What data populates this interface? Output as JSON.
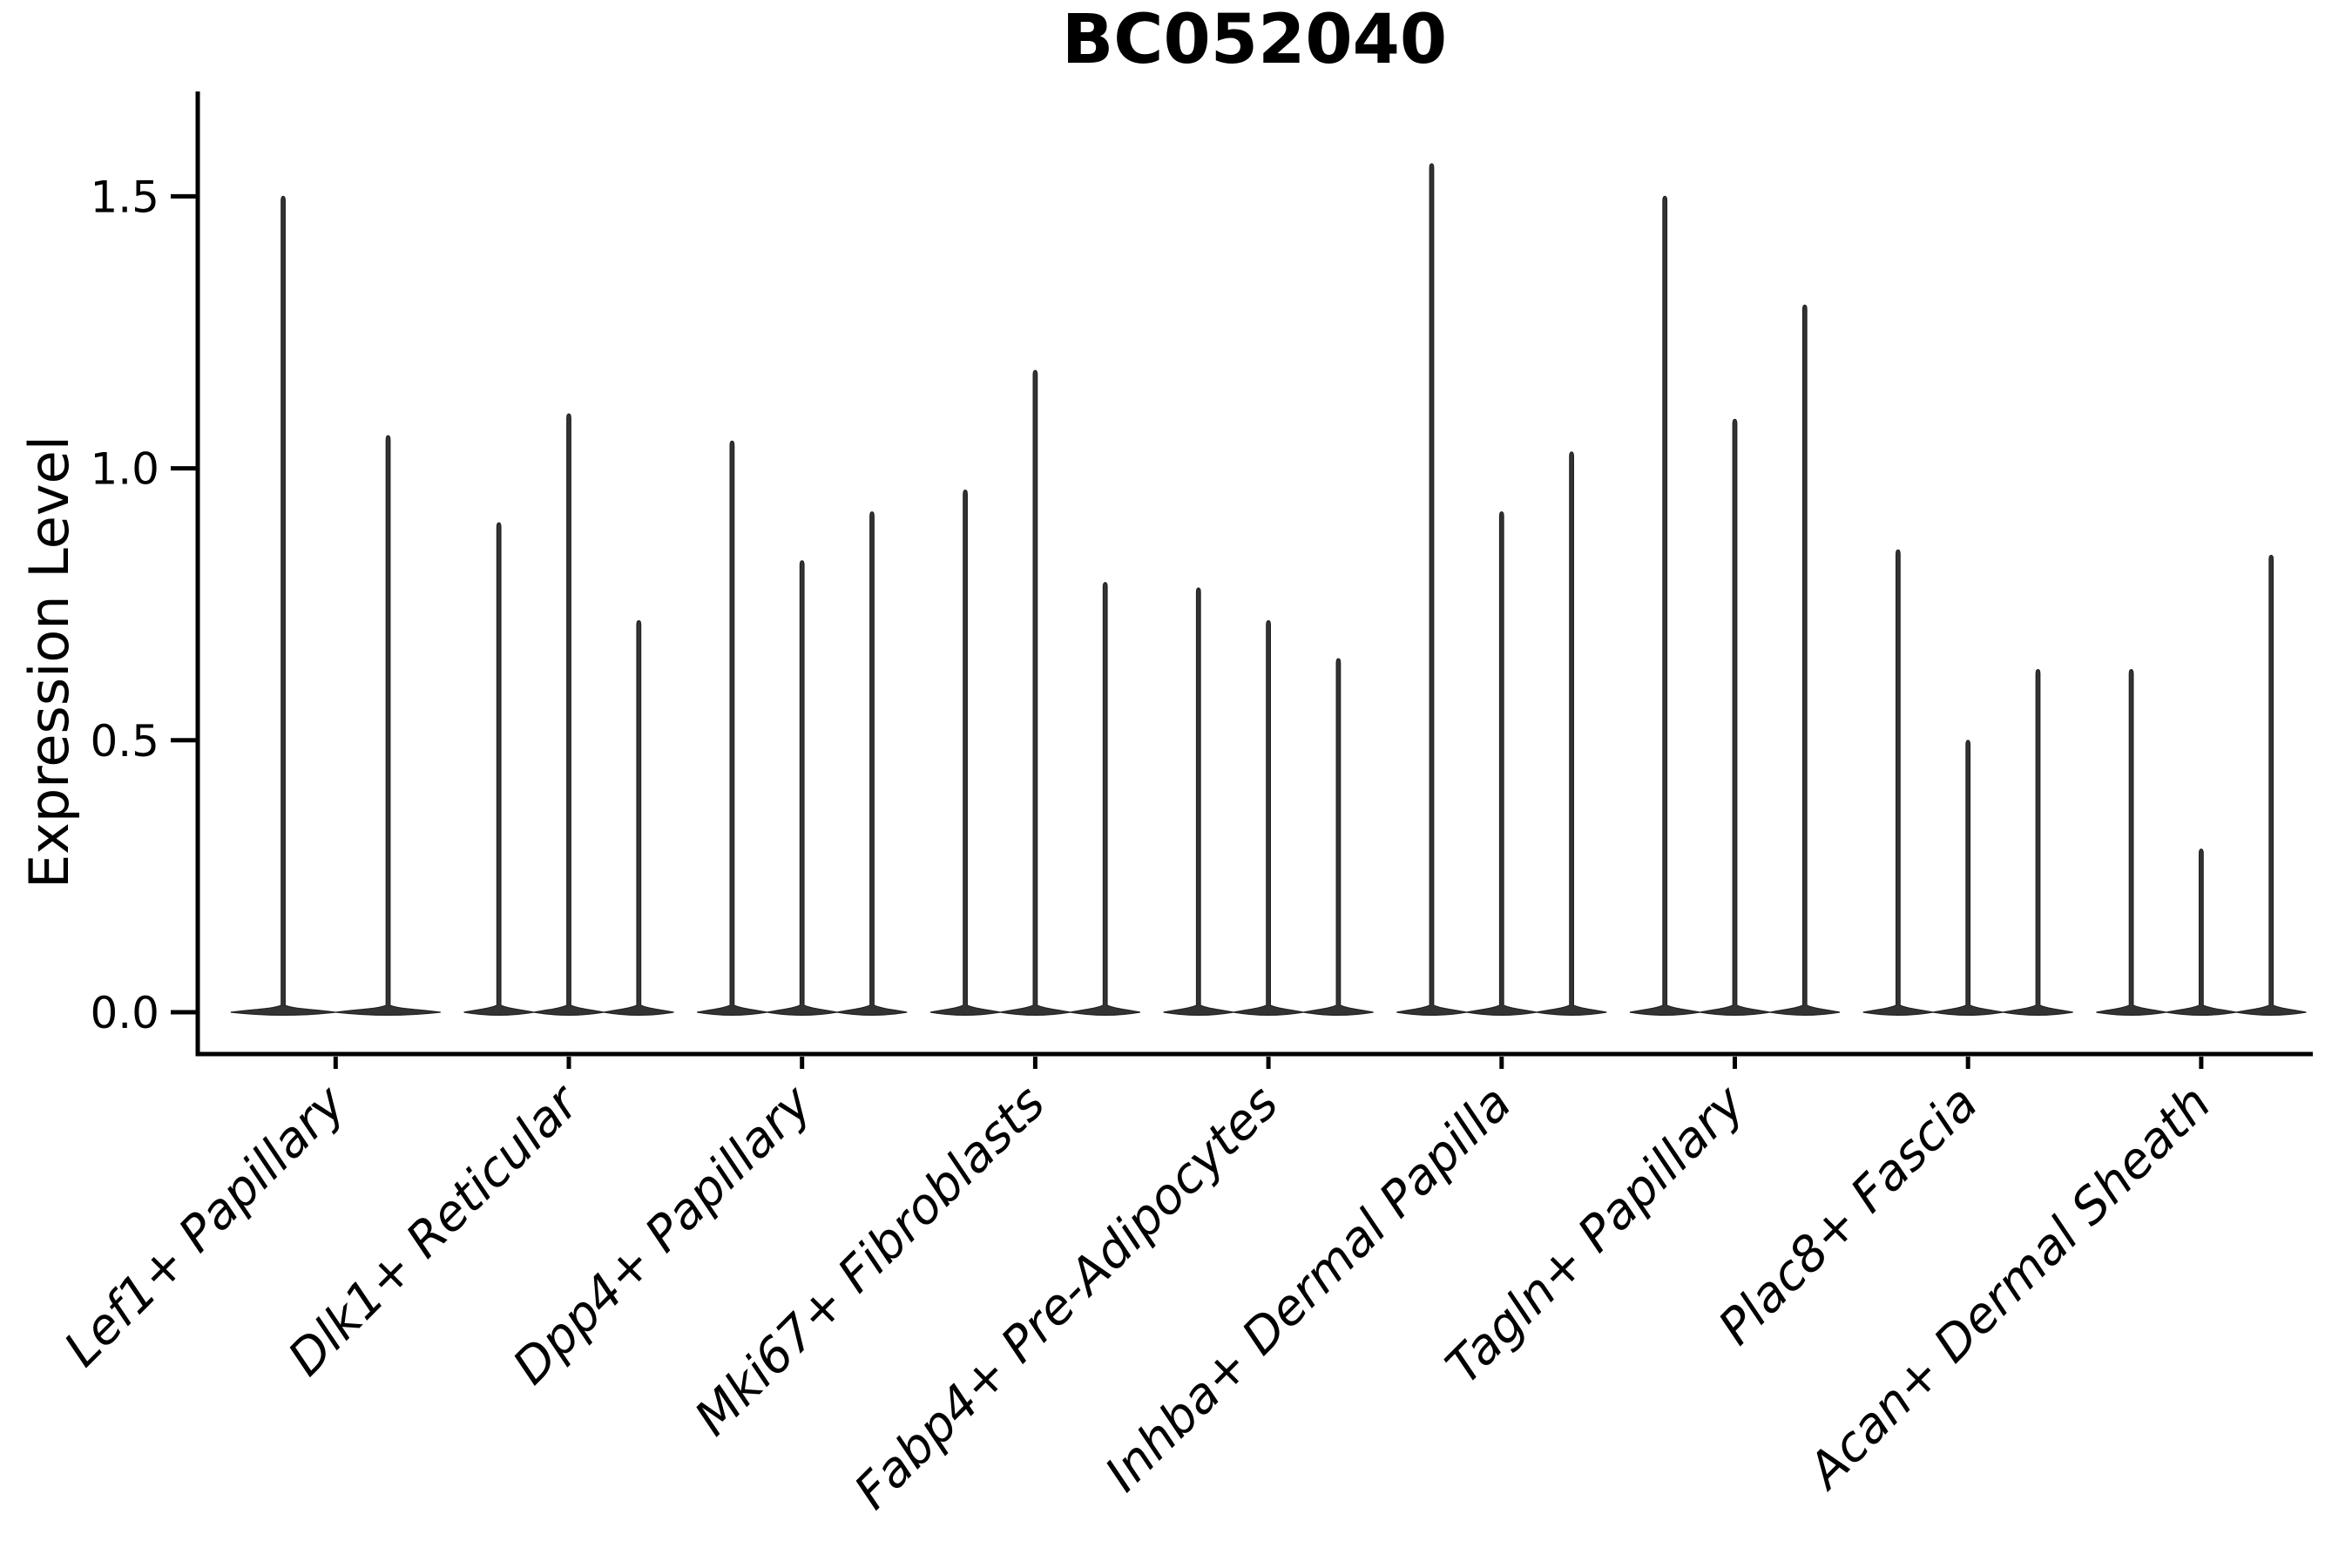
{
  "figure": {
    "background_color": "#ffffff",
    "title": "BC052040",
    "ylabel": "Expression Level",
    "xlabel": ""
  },
  "chart_data": {
    "type": "violin",
    "title": "BC052040",
    "ylabel": "Expression Level",
    "xlabel": "",
    "grid": false,
    "legend": "none",
    "ylim": [
      -0.08,
      1.69
    ],
    "ytick_labels": [
      "0.0",
      "0.5",
      "1.0",
      "1.5"
    ],
    "ytick_values": [
      0.0,
      0.5,
      1.0,
      1.5
    ],
    "x_tick_rotation_deg": 45,
    "x_tick_font_style": "italic",
    "categories": [
      "Lef1+ Papillary",
      "Dlk1+ Reticular",
      "Dpp4+ Papillary",
      "Mki67+ Fibroblasts",
      "Fabp4+ Pre-Adipocytes",
      "Inhba+ Dermal Papilla",
      "Tagln+ Papillary",
      "Plac8+ Fascia",
      "Acan+ Dermal Sheath"
    ],
    "description": "Needle-shaped violins: bulk of expression density is a flat lens at 0 with a thin spike rising to the maximum expression value; 2-3 violins (sub-populations) per category.",
    "groups": [
      {
        "label": "Lef1+ Papillary",
        "violin_maxima": [
          1.5,
          1.06
        ]
      },
      {
        "label": "Dlk1+ Reticular",
        "violin_maxima": [
          0.9,
          1.1,
          0.72
        ]
      },
      {
        "label": "Dpp4+ Papillary",
        "violin_maxima": [
          1.05,
          0.83,
          0.92
        ]
      },
      {
        "label": "Mki67+ Fibroblasts",
        "violin_maxima": [
          0.96,
          1.18,
          0.79
        ]
      },
      {
        "label": "Fabp4+ Pre-Adipocytes",
        "violin_maxima": [
          0.78,
          0.72,
          0.65
        ]
      },
      {
        "label": "Inhba+ Dermal Papilla",
        "violin_maxima": [
          1.56,
          0.92,
          1.03
        ]
      },
      {
        "label": "Tagln+ Papillary",
        "violin_maxima": [
          1.5,
          1.09,
          1.3
        ]
      },
      {
        "label": "Plac8+ Fascia",
        "violin_maxima": [
          0.85,
          0.5,
          0.63
        ]
      },
      {
        "label": "Acan+ Dermal Sheath",
        "violin_maxima": [
          0.63,
          0.3,
          0.84
        ]
      }
    ],
    "baseline_value": 0.0
  },
  "colors": {
    "background": "#ffffff",
    "axis": "#000000",
    "text": "#000000",
    "violin_fill": "#333333",
    "violin_stroke": "#222222"
  }
}
